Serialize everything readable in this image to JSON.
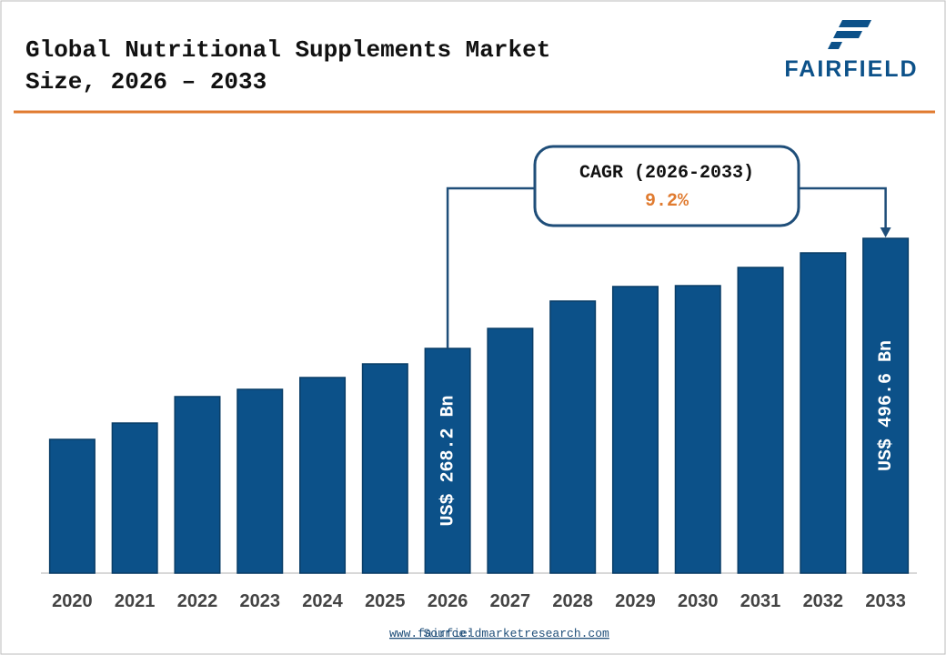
{
  "header": {
    "title_line1": "Global Nutritional Supplements Market",
    "title_line2": "Size, 2026 – 2033",
    "logo": "FAIRFIELD"
  },
  "chart_data": {
    "type": "bar",
    "categories": [
      "2020",
      "2021",
      "2022",
      "2023",
      "2024",
      "2025",
      "2026",
      "2027",
      "2028",
      "2029",
      "2030",
      "2031",
      "2032",
      "2033"
    ],
    "values": [
      79.5,
      113.4,
      168.2,
      183.3,
      207.8,
      236.1,
      268.2,
      309.7,
      366.4,
      396.6,
      398.4,
      436.2,
      466.4,
      496.6
    ],
    "value_labels": [
      null,
      null,
      null,
      null,
      null,
      null,
      "US$ 268.2 Bn",
      null,
      null,
      null,
      null,
      null,
      null,
      "US$ 496.6 Bn"
    ],
    "color": "#0c5189",
    "ylim": [
      -198,
      708
    ],
    "annotation": {
      "title": "CAGR (2026-2033)",
      "value": "9.2%"
    }
  },
  "footer": {
    "source_label": "Source:",
    "source_link": "www.fairfieldmarketresearch.com"
  }
}
